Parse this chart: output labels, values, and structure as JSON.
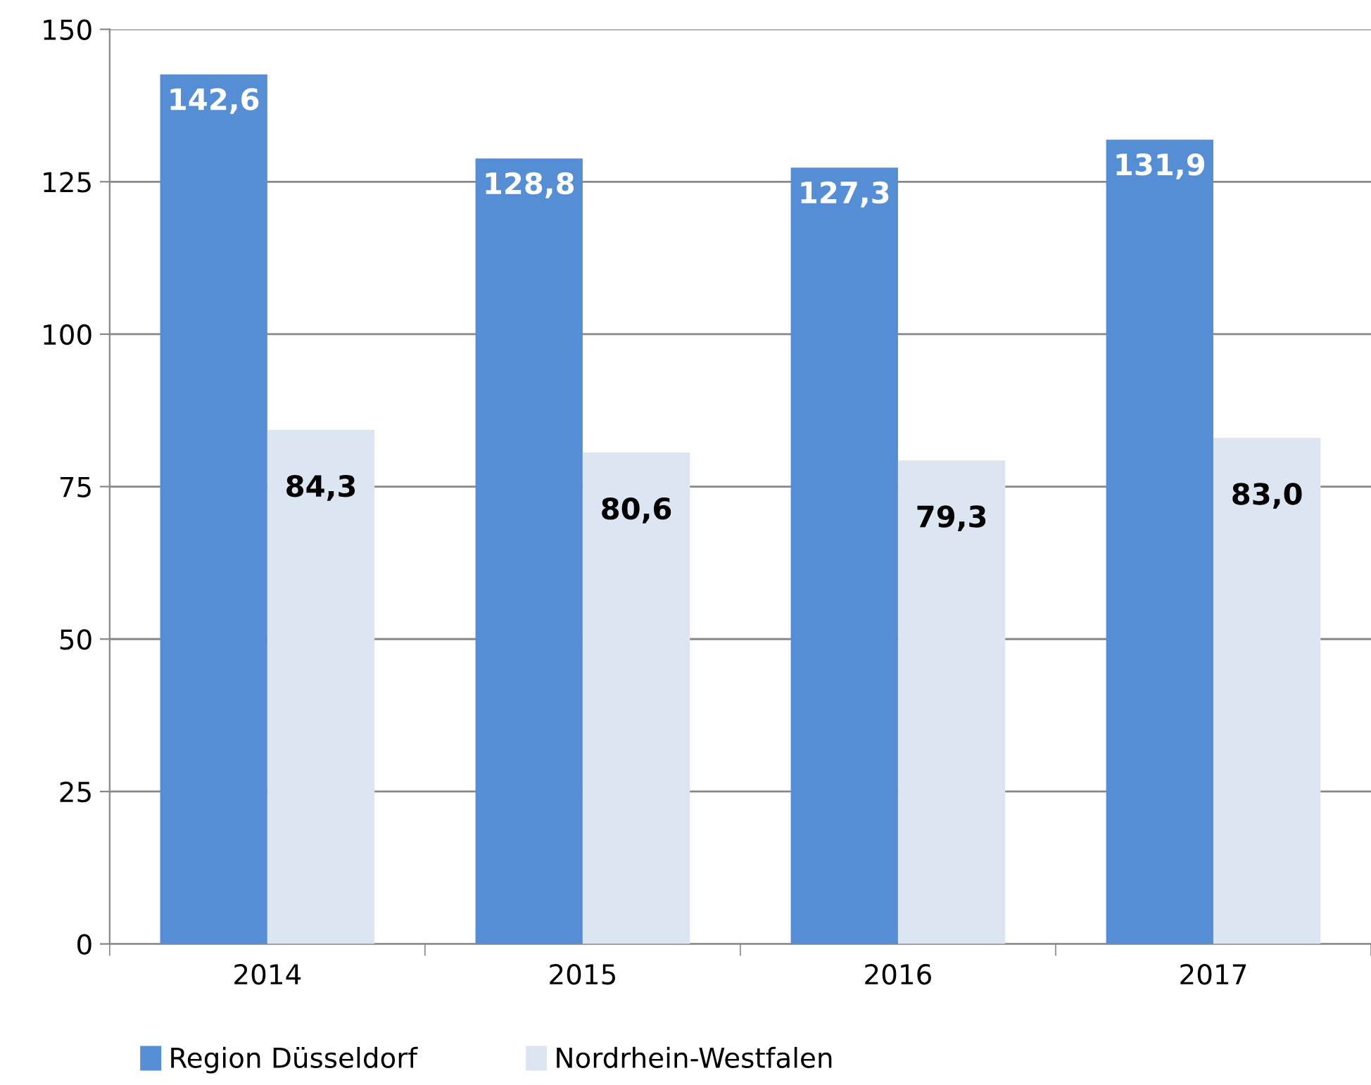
{
  "chart_data": {
    "type": "bar",
    "categories": [
      "2014",
      "2015",
      "2016",
      "2017"
    ],
    "series": [
      {
        "name": "Region Düsseldorf",
        "color": "#558ed5",
        "values": [
          142.6,
          128.8,
          127.3,
          131.9
        ],
        "value_labels": [
          "142,6",
          "128,8",
          "127,3",
          "131,9"
        ]
      },
      {
        "name": "Nordrhein-Westfalen",
        "color": "#dce6f2",
        "values": [
          84.3,
          80.6,
          79.3,
          83.0
        ],
        "value_labels": [
          "84,3",
          "80,6",
          "79,3",
          "83,0"
        ]
      }
    ],
    "ylim": [
      0,
      150
    ],
    "yticks": [
      0,
      25,
      50,
      75,
      100,
      125,
      150
    ],
    "grid": "y",
    "legend": "bottom left"
  }
}
